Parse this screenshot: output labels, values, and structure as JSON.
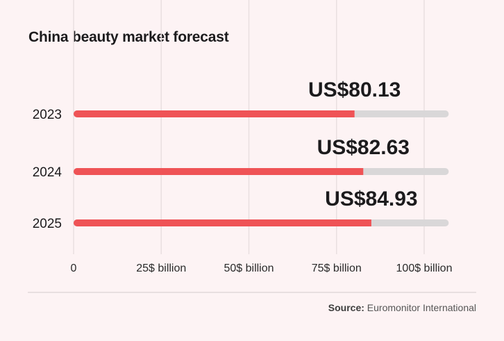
{
  "colors": {
    "bar": "#ef5356",
    "track": "#d9d7d8",
    "grid": "#e9dfe0",
    "background": "#fdf3f4"
  },
  "chart_data": {
    "type": "bar",
    "orientation": "horizontal",
    "title": "China beauty market forecast",
    "categories": [
      "2023",
      "2024",
      "2025"
    ],
    "values": [
      80.13,
      82.63,
      84.93
    ],
    "data_labels": [
      "US$80.13",
      "US$82.63",
      "US$84.93"
    ],
    "xlim": [
      0,
      107
    ],
    "xticks": [
      0,
      25,
      50,
      75,
      100
    ],
    "xtick_labels": [
      "0",
      "25$ billion",
      "50$ billion",
      "75$ billion",
      "100$ billion"
    ],
    "grid": "vertical",
    "xlabel": "",
    "ylabel": ""
  },
  "source": {
    "label": "Source:",
    "text": "Euromonitor International"
  }
}
